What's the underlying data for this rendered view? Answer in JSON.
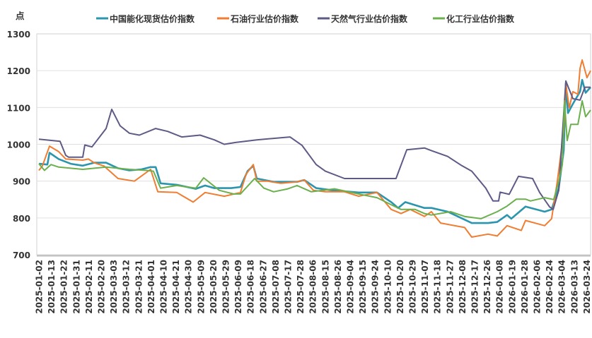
{
  "chart_data": {
    "type": "line",
    "title": "",
    "ylabel": "点",
    "xlabel": "",
    "ylim": [
      700,
      1300
    ],
    "yticks": [
      700,
      800,
      900,
      1000,
      1100,
      1200,
      1300
    ],
    "x_units": "category label index (0 = first label)",
    "xlim": [
      -0.2,
      44.4
    ],
    "grid": true,
    "legend_position": "top",
    "categories": [
      "2025-01-02",
      "2025-01-13",
      "2025-01-22",
      "2025-01-31",
      "2025-02-11",
      "2025-02-20",
      "2025-03-03",
      "2025-03-12",
      "2025-03-21",
      "2025-04-01",
      "2025-04-10",
      "2025-04-21",
      "2025-04-30",
      "2025-05-09",
      "2025-05-20",
      "2025-05-29",
      "2025-06-09",
      "2025-06-18",
      "2025-06-27",
      "2025-07-08",
      "2025-07-17",
      "2025-07-28",
      "2025-08-06",
      "2025-08-15",
      "2025-08-26",
      "2025-09-04",
      "2025-09-15",
      "2025-09-24",
      "2025-10-10",
      "2025-10-20",
      "2025-10-29",
      "2025-11-07",
      "2025-11-18",
      "2025-11-27",
      "2025-12-08",
      "2025-12-17",
      "2025-12-26",
      "2026-01-08",
      "2026-01-19",
      "2026-01-28",
      "2026-02-06",
      "2026-02-24",
      "2026-03-04",
      "2026-03-13",
      "2026-03-24"
    ],
    "series": [
      {
        "name": "中国能化现货估价指数",
        "color": "#2b95ad",
        "points": [
          [
            0,
            947
          ],
          [
            0.68,
            945
          ],
          [
            0.85,
            977
          ],
          [
            1.59,
            960
          ],
          [
            2.56,
            947
          ],
          [
            3.52,
            942
          ],
          [
            4.43,
            950
          ],
          [
            5.4,
            950
          ],
          [
            6.36,
            935
          ],
          [
            7.27,
            929
          ],
          [
            8.24,
            932
          ],
          [
            8.98,
            938
          ],
          [
            9.38,
            938
          ],
          [
            9.77,
            894
          ],
          [
            11.08,
            890
          ],
          [
            12.61,
            879
          ],
          [
            13.35,
            888
          ],
          [
            14.09,
            881
          ],
          [
            15.45,
            881
          ],
          [
            16.19,
            884
          ],
          [
            16.76,
            927
          ],
          [
            17.22,
            942
          ],
          [
            17.5,
            907
          ],
          [
            18.86,
            898
          ],
          [
            20.74,
            898
          ],
          [
            21.31,
            903
          ],
          [
            22.27,
            881
          ],
          [
            23.58,
            875
          ],
          [
            25.68,
            869
          ],
          [
            27.16,
            869
          ],
          [
            28.3,
            843
          ],
          [
            28.86,
            827
          ],
          [
            29.43,
            843
          ],
          [
            30.97,
            827
          ],
          [
            31.53,
            827
          ],
          [
            32.84,
            817
          ],
          [
            34.77,
            786
          ],
          [
            36.08,
            786
          ],
          [
            36.82,
            789
          ],
          [
            37.61,
            808
          ],
          [
            37.95,
            798
          ],
          [
            39.09,
            831
          ],
          [
            40.63,
            817
          ],
          [
            41.19,
            823
          ],
          [
            41.76,
            881
          ],
          [
            42.16,
            983
          ],
          [
            42.33,
            1165
          ],
          [
            42.5,
            1085
          ],
          [
            42.9,
            1110
          ],
          [
            43.47,
            1143
          ],
          [
            43.64,
            1175
          ],
          [
            43.92,
            1140
          ],
          [
            44.32,
            1155
          ]
        ]
      },
      {
        "name": "石油行业估价指数",
        "color": "#f07d31",
        "points": [
          [
            0,
            929
          ],
          [
            0.28,
            941
          ],
          [
            0.85,
            995
          ],
          [
            1.59,
            980
          ],
          [
            2.16,
            960
          ],
          [
            3.52,
            957
          ],
          [
            3.98,
            960
          ],
          [
            4.43,
            950
          ],
          [
            5.23,
            941
          ],
          [
            6.36,
            907
          ],
          [
            7.67,
            900
          ],
          [
            8.98,
            932
          ],
          [
            9.55,
            871
          ],
          [
            11.08,
            869
          ],
          [
            12.39,
            843
          ],
          [
            13.35,
            869
          ],
          [
            14.89,
            859
          ],
          [
            16.19,
            869
          ],
          [
            16.65,
            919
          ],
          [
            17.22,
            945
          ],
          [
            17.5,
            900
          ],
          [
            18.35,
            900
          ],
          [
            19.43,
            894
          ],
          [
            20.74,
            898
          ],
          [
            21.31,
            903
          ],
          [
            22.05,
            875
          ],
          [
            23.01,
            871
          ],
          [
            24.55,
            871
          ],
          [
            25.68,
            859
          ],
          [
            27.16,
            869
          ],
          [
            28.3,
            823
          ],
          [
            29.09,
            812
          ],
          [
            29.83,
            823
          ],
          [
            30.97,
            804
          ],
          [
            31.53,
            817
          ],
          [
            32.27,
            786
          ],
          [
            34.2,
            774
          ],
          [
            34.77,
            748
          ],
          [
            36.08,
            756
          ],
          [
            36.82,
            751
          ],
          [
            37.61,
            779
          ],
          [
            38.75,
            766
          ],
          [
            39.09,
            793
          ],
          [
            40.63,
            779
          ],
          [
            41.19,
            798
          ],
          [
            41.65,
            900
          ],
          [
            42.16,
            1034
          ],
          [
            42.33,
            1163
          ],
          [
            42.61,
            1099
          ],
          [
            42.9,
            1143
          ],
          [
            43.3,
            1136
          ],
          [
            43.47,
            1206
          ],
          [
            43.64,
            1229
          ],
          [
            44.03,
            1181
          ],
          [
            44.32,
            1200
          ]
        ]
      },
      {
        "name": "天然气行业估价指数",
        "color": "#5e5a86",
        "points": [
          [
            0,
            1014
          ],
          [
            1.7,
            1008
          ],
          [
            2.16,
            970
          ],
          [
            2.39,
            965
          ],
          [
            3.52,
            965
          ],
          [
            3.69,
            998
          ],
          [
            4.26,
            993
          ],
          [
            5.4,
            1043
          ],
          [
            5.85,
            1095
          ],
          [
            6.53,
            1050
          ],
          [
            7.27,
            1030
          ],
          [
            8.07,
            1025
          ],
          [
            9.38,
            1043
          ],
          [
            10.34,
            1035
          ],
          [
            11.48,
            1020
          ],
          [
            12.95,
            1025
          ],
          [
            14.09,
            1012
          ],
          [
            14.89,
            1000
          ],
          [
            15.8,
            1005
          ],
          [
            17.5,
            1012
          ],
          [
            20.17,
            1020
          ],
          [
            21.14,
            997
          ],
          [
            22.27,
            945
          ],
          [
            23.01,
            927
          ],
          [
            24.55,
            907
          ],
          [
            28.69,
            907
          ],
          [
            29.55,
            985
          ],
          [
            30.97,
            990
          ],
          [
            31.53,
            983
          ],
          [
            32.84,
            967
          ],
          [
            33.98,
            942
          ],
          [
            34.77,
            927
          ],
          [
            35.9,
            881
          ],
          [
            36.48,
            846
          ],
          [
            36.93,
            846
          ],
          [
            37.05,
            870
          ],
          [
            37.78,
            864
          ],
          [
            38.52,
            913
          ],
          [
            39.66,
            907
          ],
          [
            40.23,
            869
          ],
          [
            41.02,
            830
          ],
          [
            41.31,
            823
          ],
          [
            41.76,
            875
          ],
          [
            42.33,
            1172
          ],
          [
            42.9,
            1124
          ],
          [
            43.47,
            1120
          ],
          [
            43.86,
            1155
          ],
          [
            44.32,
            1155
          ]
        ]
      },
      {
        "name": "化工行业估价指数",
        "color": "#6cb04e",
        "points": [
          [
            0,
            947
          ],
          [
            0.45,
            929
          ],
          [
            0.97,
            945
          ],
          [
            1.59,
            938
          ],
          [
            3.52,
            932
          ],
          [
            5.4,
            938
          ],
          [
            7.27,
            932
          ],
          [
            8.64,
            929
          ],
          [
            9.2,
            927
          ],
          [
            9.77,
            881
          ],
          [
            11.08,
            888
          ],
          [
            12.61,
            881
          ],
          [
            13.24,
            909
          ],
          [
            14.49,
            875
          ],
          [
            15.63,
            865
          ],
          [
            16.19,
            865
          ],
          [
            17.33,
            907
          ],
          [
            18.07,
            881
          ],
          [
            18.86,
            871
          ],
          [
            20,
            879
          ],
          [
            20.74,
            888
          ],
          [
            21.88,
            871
          ],
          [
            23.75,
            879
          ],
          [
            25.68,
            865
          ],
          [
            27.16,
            855
          ],
          [
            28.3,
            836
          ],
          [
            29.09,
            823
          ],
          [
            30.23,
            823
          ],
          [
            30.97,
            812
          ],
          [
            31.53,
            808
          ],
          [
            33.07,
            817
          ],
          [
            34.2,
            804
          ],
          [
            35.51,
            798
          ],
          [
            36.82,
            817
          ],
          [
            37.61,
            832
          ],
          [
            38.35,
            851
          ],
          [
            39.09,
            851
          ],
          [
            39.49,
            846
          ],
          [
            40.63,
            855
          ],
          [
            41.36,
            850
          ],
          [
            41.76,
            900
          ],
          [
            42.05,
            945
          ],
          [
            42.22,
            1118
          ],
          [
            42.44,
            1010
          ],
          [
            42.73,
            1054
          ],
          [
            43.3,
            1054
          ],
          [
            43.64,
            1118
          ],
          [
            43.92,
            1075
          ],
          [
            44.32,
            1093
          ]
        ]
      }
    ]
  }
}
